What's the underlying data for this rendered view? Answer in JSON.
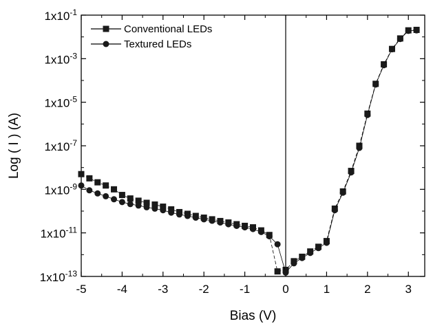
{
  "chart_data": {
    "type": "scatter",
    "xlabel": "Bias  (V)",
    "ylabel": "Log ( I )    (A)",
    "yscale": "log",
    "xlim": [
      -5,
      3.4
    ],
    "ylim": [
      1e-13,
      0.1
    ],
    "xticks": [
      -5,
      -4,
      -3,
      -2,
      -1,
      0,
      1,
      2,
      3
    ],
    "xtick_labels": [
      "-5",
      "-4",
      "-3",
      "-2",
      "-1",
      "0",
      "1",
      "2",
      "3"
    ],
    "yticks": [
      1e-13,
      1e-11,
      1e-09,
      1e-07,
      1e-05,
      0.001,
      0.1
    ],
    "ytick_labels": [
      {
        "base": "1x10",
        "exp": "-13"
      },
      {
        "base": "1x10",
        "exp": "-11"
      },
      {
        "base": "1x10",
        "exp": "-9"
      },
      {
        "base": "1x10",
        "exp": "-7"
      },
      {
        "base": "1x10",
        "exp": "-5"
      },
      {
        "base": "1x10",
        "exp": "-3"
      },
      {
        "base": "1x10",
        "exp": "-1"
      }
    ],
    "reference_line_x": 0,
    "legend_position": "top-left",
    "series": [
      {
        "name": "Conventional LEDs",
        "marker": "square",
        "x": [
          -5.0,
          -4.8,
          -4.6,
          -4.4,
          -4.2,
          -4.0,
          -3.8,
          -3.6,
          -3.4,
          -3.2,
          -3.0,
          -2.8,
          -2.6,
          -2.4,
          -2.2,
          -2.0,
          -1.8,
          -1.6,
          -1.4,
          -1.2,
          -1.0,
          -0.8,
          -0.6,
          -0.4,
          -0.2,
          0.0,
          0.2,
          0.4,
          0.6,
          0.8,
          1.0,
          1.2,
          1.4,
          1.6,
          1.8,
          2.0,
          2.2,
          2.4,
          2.6,
          2.8,
          3.0,
          3.2
        ],
        "y": [
          5e-09,
          3.2e-09,
          2.1e-09,
          1.5e-09,
          1e-09,
          5.5e-10,
          3.8e-10,
          3e-10,
          2.4e-10,
          2e-10,
          1.6e-10,
          1.2e-10,
          9e-11,
          7.5e-11,
          6e-11,
          5e-11,
          4.2e-11,
          3.5e-11,
          3e-11,
          2.5e-11,
          2.1e-11,
          1.8e-11,
          1.3e-11,
          8e-12,
          1.7e-13,
          2e-13,
          5e-13,
          8e-13,
          1.4e-12,
          2.3e-12,
          4.2e-12,
          1.3e-10,
          8e-10,
          7e-09,
          1e-07,
          3e-06,
          7e-05,
          0.00055,
          0.0028,
          0.0085,
          0.02,
          0.021
        ]
      },
      {
        "name": "Textured LEDs",
        "marker": "circle",
        "x": [
          -5.0,
          -4.8,
          -4.6,
          -4.4,
          -4.2,
          -4.0,
          -3.8,
          -3.6,
          -3.4,
          -3.2,
          -3.0,
          -2.8,
          -2.6,
          -2.4,
          -2.2,
          -2.0,
          -1.8,
          -1.6,
          -1.4,
          -1.2,
          -1.0,
          -0.8,
          -0.6,
          -0.4,
          -0.2,
          0.0,
          0.2,
          0.4,
          0.6,
          0.8,
          1.0,
          1.2,
          1.4,
          1.6,
          1.8,
          2.0,
          2.2,
          2.4,
          2.6,
          2.8,
          3.0,
          3.2
        ],
        "y": [
          1.5e-09,
          9e-10,
          6.5e-10,
          4.8e-10,
          3.5e-10,
          2.6e-10,
          2.1e-10,
          1.8e-10,
          1.5e-10,
          1.3e-10,
          1.1e-10,
          8.5e-11,
          7e-11,
          6e-11,
          5e-11,
          4.2e-11,
          3.6e-11,
          3e-11,
          2.5e-11,
          2.1e-11,
          1.8e-11,
          1.5e-11,
          1.1e-11,
          7e-12,
          3e-12,
          1.5e-13,
          4e-13,
          7e-13,
          1.2e-12,
          2e-12,
          3.5e-12,
          1.1e-10,
          7e-10,
          6e-09,
          8e-08,
          2.6e-06,
          6.5e-05,
          0.0005,
          0.0027,
          0.008,
          0.019,
          0.02
        ]
      }
    ]
  }
}
